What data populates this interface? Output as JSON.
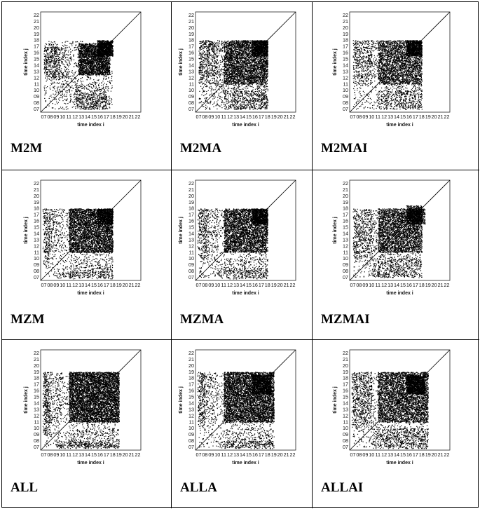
{
  "chart_data": [
    {
      "type": "scatter",
      "label": "M2M",
      "xlabel": "time index i",
      "ylabel": "time index j",
      "ticks": [
        "07",
        "08",
        "09",
        "10",
        "11",
        "12",
        "13",
        "14",
        "15",
        "16",
        "17",
        "18",
        "19",
        "20",
        "21",
        "22"
      ],
      "xlim": [
        6.5,
        22.5
      ],
      "ylim": [
        6.5,
        22.5
      ],
      "diagonal": true,
      "clusters": [
        {
          "x": [
            12.5,
            17.5
          ],
          "y": [
            12.5,
            17.5
          ],
          "density": 0.55
        },
        {
          "x": [
            15.5,
            18
          ],
          "y": [
            15.5,
            18
          ],
          "density": 0.85
        },
        {
          "x": [
            7,
            11
          ],
          "y": [
            12,
            17
          ],
          "density": 0.12
        },
        {
          "x": [
            12,
            17
          ],
          "y": [
            7,
            9.5
          ],
          "density": 0.2
        },
        {
          "x": [
            7,
            18
          ],
          "y": [
            7,
            18
          ],
          "density": 0.05
        }
      ]
    },
    {
      "type": "scatter",
      "label": "M2MA",
      "xlabel": "time index i",
      "ylabel": "time index j",
      "ticks": [
        "07",
        "08",
        "09",
        "10",
        "11",
        "12",
        "13",
        "14",
        "15",
        "16",
        "17",
        "18",
        "19",
        "20",
        "21",
        "22"
      ],
      "xlim": [
        6.5,
        22.5
      ],
      "ylim": [
        6.5,
        22.5
      ],
      "diagonal": true,
      "clusters": [
        {
          "x": [
            11,
            18
          ],
          "y": [
            11,
            18
          ],
          "density": 0.4
        },
        {
          "x": [
            15.5,
            18
          ],
          "y": [
            15.5,
            18
          ],
          "density": 0.75
        },
        {
          "x": [
            7,
            11
          ],
          "y": [
            12,
            18
          ],
          "density": 0.1
        },
        {
          "x": [
            11,
            18
          ],
          "y": [
            7,
            10
          ],
          "density": 0.18
        },
        {
          "x": [
            7,
            18
          ],
          "y": [
            7,
            18
          ],
          "density": 0.05
        }
      ]
    },
    {
      "type": "scatter",
      "label": "M2MAI",
      "xlabel": "time index i",
      "ylabel": "time index j",
      "ticks": [
        "07",
        "08",
        "09",
        "10",
        "11",
        "12",
        "13",
        "14",
        "15",
        "16",
        "17",
        "18",
        "19",
        "20",
        "21",
        "22"
      ],
      "xlim": [
        6.5,
        22.5
      ],
      "ylim": [
        6.5,
        22.5
      ],
      "diagonal": true,
      "clusters": [
        {
          "x": [
            11,
            18
          ],
          "y": [
            11,
            18
          ],
          "density": 0.32
        },
        {
          "x": [
            15.5,
            18
          ],
          "y": [
            15.5,
            18
          ],
          "density": 0.8
        },
        {
          "x": [
            7,
            11
          ],
          "y": [
            12,
            18
          ],
          "density": 0.08
        },
        {
          "x": [
            11,
            18
          ],
          "y": [
            7,
            10
          ],
          "density": 0.15
        },
        {
          "x": [
            7,
            18
          ],
          "y": [
            7,
            18
          ],
          "density": 0.04
        }
      ]
    },
    {
      "type": "scatter",
      "label": "MZM",
      "xlabel": "time index i",
      "ylabel": "time index j",
      "ticks": [
        "07",
        "08",
        "09",
        "10",
        "11",
        "12",
        "13",
        "14",
        "15",
        "16",
        "17",
        "18",
        "19",
        "20",
        "21",
        "22"
      ],
      "xlim": [
        6.5,
        22.5
      ],
      "ylim": [
        6.5,
        22.5
      ],
      "diagonal": true,
      "clusters": [
        {
          "x": [
            11,
            18
          ],
          "y": [
            11,
            18
          ],
          "density": 0.45
        },
        {
          "x": [
            15.5,
            18
          ],
          "y": [
            15.5,
            18
          ],
          "density": 0.6
        },
        {
          "x": [
            7,
            10
          ],
          "y": [
            11,
            18
          ],
          "density": 0.1
        },
        {
          "x": [
            9,
            18
          ],
          "y": [
            6.8,
            8
          ],
          "density": 0.18
        },
        {
          "x": [
            7,
            18
          ],
          "y": [
            7,
            18
          ],
          "density": 0.04
        }
      ]
    },
    {
      "type": "scatter",
      "label": "MZMA",
      "xlabel": "time index i",
      "ylabel": "time index j",
      "ticks": [
        "07",
        "08",
        "09",
        "10",
        "11",
        "12",
        "13",
        "14",
        "15",
        "16",
        "17",
        "18",
        "19",
        "20",
        "21",
        "22"
      ],
      "xlim": [
        6.5,
        22.5
      ],
      "ylim": [
        6.5,
        22.5
      ],
      "diagonal": true,
      "clusters": [
        {
          "x": [
            11,
            18
          ],
          "y": [
            11,
            18
          ],
          "density": 0.4
        },
        {
          "x": [
            15.5,
            18
          ],
          "y": [
            15.5,
            18
          ],
          "density": 0.65
        },
        {
          "x": [
            7,
            10
          ],
          "y": [
            11,
            18
          ],
          "density": 0.08
        },
        {
          "x": [
            10,
            18
          ],
          "y": [
            6.8,
            8.5
          ],
          "density": 0.2
        },
        {
          "x": [
            7,
            18
          ],
          "y": [
            7,
            18
          ],
          "density": 0.04
        }
      ]
    },
    {
      "type": "scatter",
      "label": "MZMAI",
      "xlabel": "time index i",
      "ylabel": "time index j",
      "ticks": [
        "07",
        "08",
        "09",
        "10",
        "11",
        "12",
        "13",
        "14",
        "15",
        "16",
        "17",
        "18",
        "19",
        "20",
        "21",
        "22"
      ],
      "xlim": [
        6.5,
        22.5
      ],
      "ylim": [
        6.5,
        22.5
      ],
      "diagonal": true,
      "clusters": [
        {
          "x": [
            11,
            18
          ],
          "y": [
            11,
            18
          ],
          "density": 0.35
        },
        {
          "x": [
            15.5,
            18
          ],
          "y": [
            15.5,
            18.5
          ],
          "density": 0.8
        },
        {
          "x": [
            7,
            11
          ],
          "y": [
            11,
            18
          ],
          "density": 0.08
        },
        {
          "x": [
            10,
            18
          ],
          "y": [
            7,
            10
          ],
          "density": 0.15
        },
        {
          "x": [
            7,
            18
          ],
          "y": [
            7,
            18
          ],
          "density": 0.04
        }
      ]
    },
    {
      "type": "scatter",
      "label": "ALL",
      "xlabel": "time index i",
      "ylabel": "time index j",
      "ticks": [
        "07",
        "08",
        "09",
        "10",
        "11",
        "12",
        "13",
        "14",
        "15",
        "16",
        "17",
        "18",
        "19",
        "20",
        "21",
        "22"
      ],
      "xlim": [
        6.5,
        22.5
      ],
      "ylim": [
        6.5,
        22.5
      ],
      "diagonal": true,
      "clusters": [
        {
          "x": [
            11,
            19
          ],
          "y": [
            11,
            19
          ],
          "density": 0.5
        },
        {
          "x": [
            7,
            10
          ],
          "y": [
            11,
            19
          ],
          "density": 0.1
        },
        {
          "x": [
            9,
            19
          ],
          "y": [
            6.8,
            8
          ],
          "density": 0.25
        },
        {
          "x": [
            7,
            19
          ],
          "y": [
            7,
            19
          ],
          "density": 0.04
        }
      ]
    },
    {
      "type": "scatter",
      "label": "ALLA",
      "xlabel": "time index i",
      "ylabel": "time index j",
      "ticks": [
        "07",
        "08",
        "09",
        "10",
        "11",
        "12",
        "13",
        "14",
        "15",
        "16",
        "17",
        "18",
        "19",
        "20",
        "21",
        "22"
      ],
      "xlim": [
        6.5,
        22.5
      ],
      "ylim": [
        6.5,
        22.5
      ],
      "diagonal": true,
      "clusters": [
        {
          "x": [
            11,
            19
          ],
          "y": [
            11,
            19
          ],
          "density": 0.45
        },
        {
          "x": [
            15.5,
            18.5
          ],
          "y": [
            15.5,
            18.5
          ],
          "density": 0.6
        },
        {
          "x": [
            7,
            10
          ],
          "y": [
            11,
            19
          ],
          "density": 0.08
        },
        {
          "x": [
            10,
            19
          ],
          "y": [
            6.8,
            8
          ],
          "density": 0.22
        },
        {
          "x": [
            7,
            19
          ],
          "y": [
            7,
            19
          ],
          "density": 0.04
        }
      ]
    },
    {
      "type": "scatter",
      "label": "ALLAI",
      "xlabel": "time index i",
      "ylabel": "time index j",
      "ticks": [
        "07",
        "08",
        "09",
        "10",
        "11",
        "12",
        "13",
        "14",
        "15",
        "16",
        "17",
        "18",
        "19",
        "20",
        "21",
        "22"
      ],
      "xlim": [
        6.5,
        22.5
      ],
      "ylim": [
        6.5,
        22.5
      ],
      "diagonal": true,
      "clusters": [
        {
          "x": [
            11,
            19
          ],
          "y": [
            11,
            19
          ],
          "density": 0.35
        },
        {
          "x": [
            15.5,
            18.5
          ],
          "y": [
            15.5,
            18.5
          ],
          "density": 0.85
        },
        {
          "x": [
            7,
            10
          ],
          "y": [
            11,
            19
          ],
          "density": 0.08
        },
        {
          "x": [
            10,
            19
          ],
          "y": [
            6.8,
            10
          ],
          "density": 0.18
        },
        {
          "x": [
            7,
            19
          ],
          "y": [
            7,
            19
          ],
          "density": 0.04
        }
      ]
    }
  ]
}
